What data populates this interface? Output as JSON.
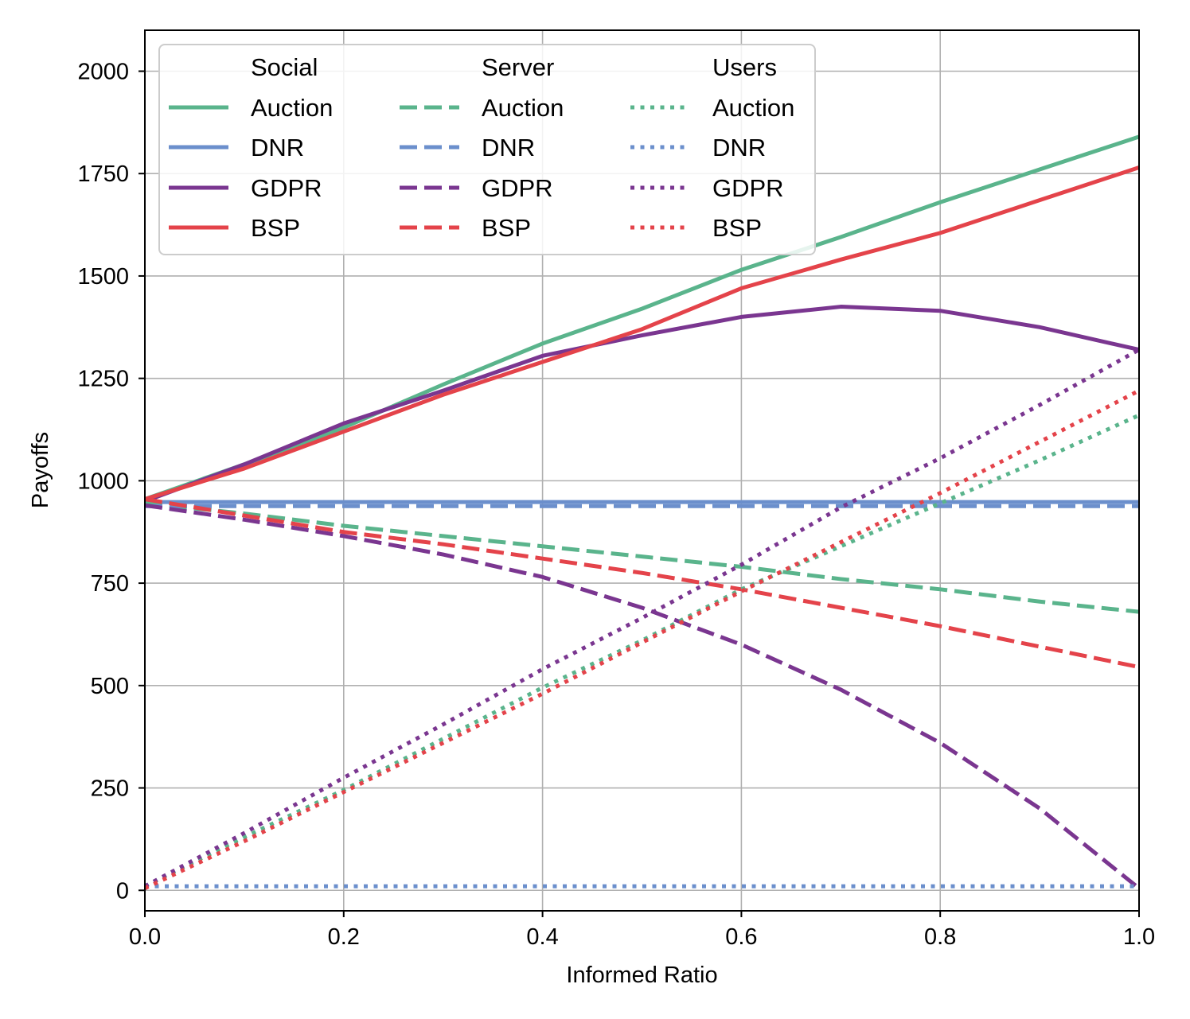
{
  "chart_data": {
    "type": "line",
    "title": "",
    "xlabel": "Informed Ratio",
    "ylabel": "Payoffs",
    "xlim": [
      0.0,
      1.0
    ],
    "ylim": [
      -50,
      2100
    ],
    "grid": true,
    "legend_placement": "top-left",
    "x_ticks": [
      0.0,
      0.2,
      0.4,
      0.6,
      0.8,
      1.0
    ],
    "x_tick_labels": [
      "0.0",
      "0.2",
      "0.4",
      "0.6",
      "0.8",
      "1.0"
    ],
    "y_ticks": [
      0,
      250,
      500,
      750,
      1000,
      1250,
      1500,
      1750,
      2000
    ],
    "y_tick_labels": [
      "0",
      "250",
      "500",
      "750",
      "1000",
      "1250",
      "1500",
      "1750",
      "2000"
    ],
    "x": [
      0.0,
      0.1,
      0.2,
      0.3,
      0.4,
      0.5,
      0.6,
      0.7,
      0.8,
      0.9,
      1.0
    ],
    "legend_group_headers": [
      "Social",
      "Server",
      "Users"
    ],
    "colors": {
      "Auction": "#5ab48c",
      "DNR": "#6b8fcc",
      "GDPR": "#7a3690",
      "BSP": "#e4434a"
    },
    "series": [
      {
        "group": "Social",
        "name": "Auction",
        "style": "solid",
        "values": [
          955,
          1040,
          1130,
          1235,
          1335,
          1420,
          1515,
          1595,
          1680,
          1760,
          1840
        ]
      },
      {
        "group": "Social",
        "name": "DNR",
        "style": "solid",
        "values": [
          948,
          948,
          948,
          948,
          948,
          948,
          948,
          948,
          948,
          948,
          948
        ]
      },
      {
        "group": "Social",
        "name": "GDPR",
        "style": "solid",
        "values": [
          950,
          1040,
          1140,
          1220,
          1305,
          1355,
          1400,
          1425,
          1415,
          1375,
          1320
        ]
      },
      {
        "group": "Social",
        "name": "BSP",
        "style": "solid",
        "values": [
          955,
          1030,
          1120,
          1210,
          1290,
          1370,
          1470,
          1540,
          1605,
          1685,
          1765
        ]
      },
      {
        "group": "Server",
        "name": "Auction",
        "style": "dashed",
        "values": [
          945,
          920,
          890,
          865,
          840,
          815,
          790,
          760,
          735,
          705,
          680
        ]
      },
      {
        "group": "Server",
        "name": "DNR",
        "style": "dashed",
        "values": [
          938,
          938,
          938,
          938,
          938,
          938,
          938,
          938,
          938,
          938,
          938
        ]
      },
      {
        "group": "Server",
        "name": "GDPR",
        "style": "dashed",
        "values": [
          940,
          905,
          865,
          820,
          765,
          690,
          600,
          490,
          360,
          200,
          5
        ]
      },
      {
        "group": "Server",
        "name": "BSP",
        "style": "dashed",
        "values": [
          955,
          915,
          875,
          845,
          810,
          775,
          735,
          690,
          645,
          595,
          545
        ]
      },
      {
        "group": "Users",
        "name": "Auction",
        "style": "dotted",
        "values": [
          10,
          130,
          245,
          370,
          495,
          610,
          735,
          840,
          945,
          1050,
          1160
        ]
      },
      {
        "group": "Users",
        "name": "DNR",
        "style": "dotted",
        "values": [
          10,
          10,
          10,
          10,
          10,
          10,
          10,
          10,
          10,
          10,
          10
        ]
      },
      {
        "group": "Users",
        "name": "GDPR",
        "style": "dotted",
        "values": [
          10,
          140,
          275,
          405,
          540,
          665,
          795,
          935,
          1055,
          1185,
          1320
        ]
      },
      {
        "group": "Users",
        "name": "BSP",
        "style": "dotted",
        "values": [
          5,
          120,
          240,
          360,
          480,
          605,
          730,
          850,
          970,
          1095,
          1220
        ]
      }
    ]
  }
}
